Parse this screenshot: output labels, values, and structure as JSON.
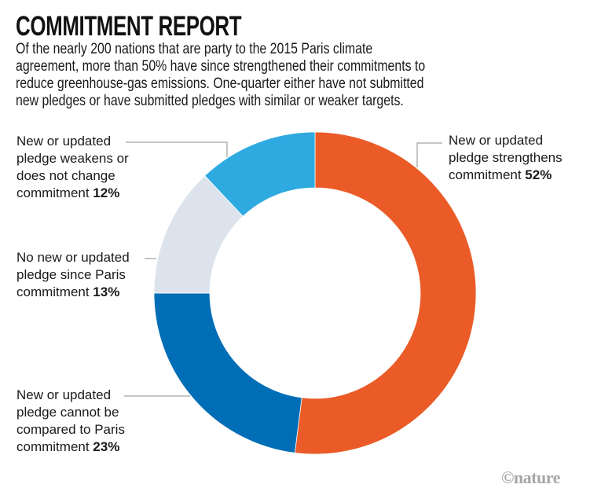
{
  "title": "COMMITMENT REPORT",
  "subtitle_lines": [
    "Of the nearly 200 nations that are party to the 2015 Paris climate",
    "agreement, more than 50% have since strengthened their commitments to",
    "reduce greenhouse-gas emissions. One-quarter either have not submitted",
    "new pledges or have submitted pledges with similar or weaker targets."
  ],
  "credit": "©nature",
  "chart_data": {
    "type": "pie",
    "variant": "donut",
    "start": "12 o'clock",
    "direction": "clockwise",
    "unit": "%",
    "slices": [
      {
        "name": "strengthens",
        "lines": [
          "New or updated",
          "pledge strengthens",
          "commitment "
        ],
        "value": 52,
        "value_label": "52%",
        "color": "#EA5B27"
      },
      {
        "name": "cannot-compare",
        "lines": [
          "New or updated",
          "pledge cannot be",
          "compared to Paris",
          "commitment "
        ],
        "value": 23,
        "value_label": "23%",
        "color": "#006EB6"
      },
      {
        "name": "no-new-pledge",
        "lines": [
          "No new or updated",
          "pledge since Paris",
          "commitment "
        ],
        "value": 13,
        "value_label": "13%",
        "color": "#DCE3EC"
      },
      {
        "name": "weakens",
        "lines": [
          "New or updated",
          "pledge weakens or",
          "does not change",
          "commitment "
        ],
        "value": 12,
        "value_label": "12%",
        "color": "#2EAAE1"
      }
    ]
  }
}
